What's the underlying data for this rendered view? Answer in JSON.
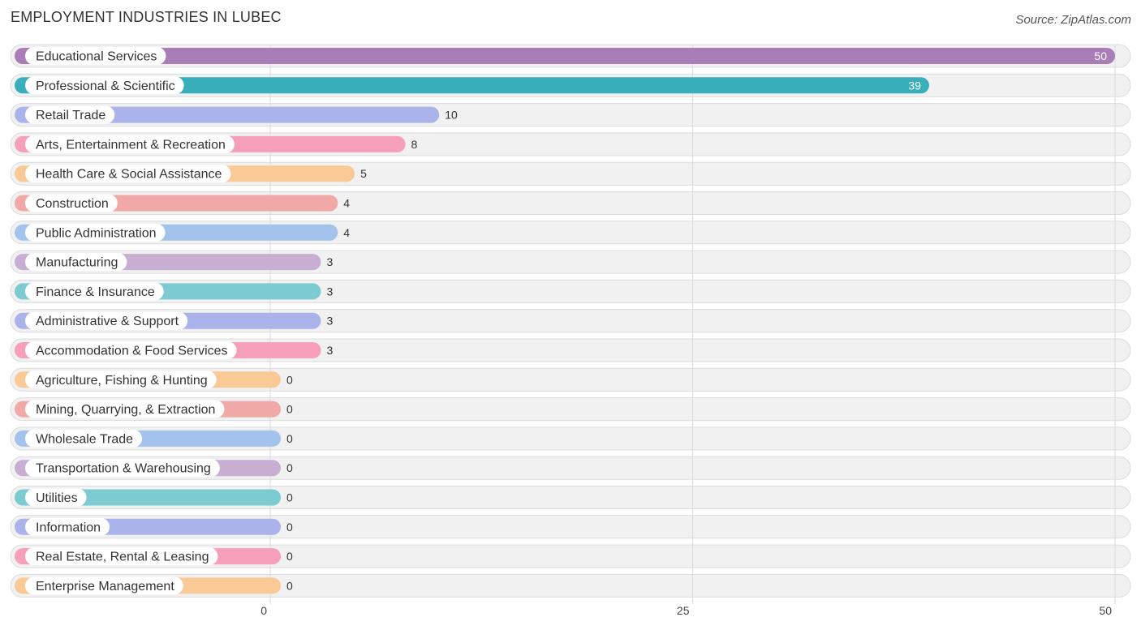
{
  "header": {
    "title": "EMPLOYMENT INDUSTRIES IN LUBEC",
    "source": "Source: ZipAtlas.com"
  },
  "chart_data": {
    "type": "bar",
    "orientation": "horizontal",
    "title": "EMPLOYMENT INDUSTRIES IN LUBEC",
    "xlim": [
      0,
      50
    ],
    "x_ticks": [
      0,
      25,
      50
    ],
    "grid": true,
    "categories": [
      "Educational Services",
      "Professional & Scientific",
      "Retail Trade",
      "Arts, Entertainment & Recreation",
      "Health Care & Social Assistance",
      "Construction",
      "Public Administration",
      "Manufacturing",
      "Finance & Insurance",
      "Administrative & Support",
      "Accommodation & Food Services",
      "Agriculture, Fishing & Hunting",
      "Mining, Quarrying, & Extraction",
      "Wholesale Trade",
      "Transportation & Warehousing",
      "Utilities",
      "Information",
      "Real Estate, Rental & Leasing",
      "Enterprise Management"
    ],
    "values": [
      50,
      39,
      10,
      8,
      5,
      4,
      4,
      3,
      3,
      3,
      3,
      0,
      0,
      0,
      0,
      0,
      0,
      0,
      0
    ],
    "colors": [
      "#a97db5",
      "#3aafbc",
      "#aab3ea",
      "#f59fb8",
      "#f9c996",
      "#f0a9a6",
      "#a4c3ec",
      "#c9aed3",
      "#7ccbd0",
      "#aab3ea",
      "#f59fb8",
      "#f9c996",
      "#f0a9a6",
      "#a4c3ec",
      "#c9aed3",
      "#7ccbd0",
      "#aab3ea",
      "#f59fb8",
      "#f9c996"
    ]
  }
}
